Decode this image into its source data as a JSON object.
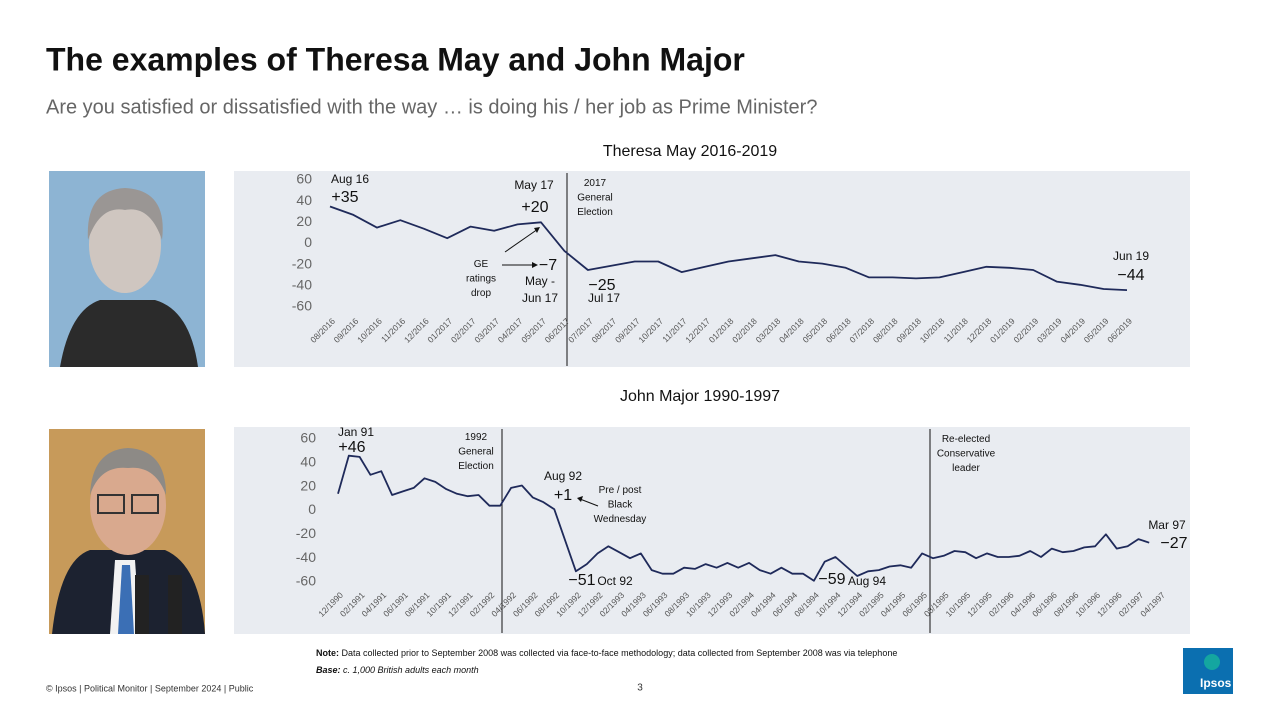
{
  "title": "The examples of Theresa May and John Major",
  "subtitle": "Are you satisfied or dissatisfied with the way … is doing his / her  job as Prime Minister?",
  "note": {
    "label": "Note:",
    "text": "Data collected prior to September 2008 was collected via face-to-face methodology; data collected from September 2008 was via telephone"
  },
  "base": {
    "label": "Base:",
    "text": "c. 1,000 British adults each month"
  },
  "footer": "© Ipsos | Political Monitor | September 2024 | Public",
  "page_number": "3",
  "logo": "Ipsos",
  "chart_data": [
    {
      "type": "line",
      "title": "Theresa May 2016-2019",
      "color": "#1f2a5a",
      "ylim": [
        -60,
        60
      ],
      "yticks": [
        -60,
        -40,
        -20,
        0,
        20,
        40,
        60
      ],
      "categories": [
        "08/2016",
        "09/2016",
        "10/2016",
        "11/2016",
        "12/2016",
        "01/2017",
        "02/2017",
        "03/2017",
        "04/2017",
        "05/2017",
        "06/2017",
        "07/2017",
        "08/2017",
        "09/2017",
        "10/2017",
        "11/2017",
        "12/2017",
        "01/2018",
        "02/2018",
        "03/2018",
        "04/2018",
        "05/2018",
        "06/2018",
        "07/2018",
        "08/2018",
        "09/2018",
        "10/2018",
        "11/2018",
        "12/2018",
        "01/2019",
        "02/2019",
        "03/2019",
        "04/2019",
        "05/2019",
        "06/2019"
      ],
      "values": [
        35,
        27,
        15,
        22,
        14,
        5,
        16,
        12,
        18,
        20,
        -7,
        -25,
        -21,
        -17,
        -17,
        -27,
        -22,
        -17,
        -14,
        -11,
        -17,
        -19,
        -23,
        -32,
        -32,
        -33,
        -32,
        -27,
        -22,
        -23,
        -25,
        -36,
        -39,
        -43,
        -44
      ],
      "value_labels": [
        "+35",
        null,
        null,
        null,
        null,
        null,
        null,
        null,
        null,
        "+20",
        "−7",
        "−25",
        null,
        null,
        null,
        null,
        null,
        null,
        null,
        null,
        null,
        null,
        null,
        null,
        null,
        null,
        null,
        null,
        null,
        null,
        null,
        null,
        null,
        null,
        "−44"
      ],
      "annotations": [
        "Aug 16",
        "May 17",
        [
          "2017",
          "General",
          "Election"
        ],
        [
          "GE",
          "ratings",
          "drop"
        ],
        [
          "May -",
          "Jun 17"
        ],
        "Jul 17",
        "Jun 19"
      ]
    },
    {
      "type": "line",
      "title": "John Major 1990-1997",
      "color": "#1f2a5a",
      "ylim": [
        -60,
        60
      ],
      "yticks": [
        -60,
        -40,
        -20,
        0,
        20,
        40,
        60
      ],
      "categories": [
        "12/1990",
        null,
        "02/1991",
        null,
        "04/1991",
        null,
        "06/1991",
        null,
        "08/1991",
        null,
        "10/1991",
        null,
        "12/1991",
        null,
        "02/1992",
        null,
        "04/1992",
        null,
        "06/1992",
        null,
        "08/1992",
        null,
        "10/1992",
        null,
        "12/1992",
        null,
        "02/1993",
        null,
        "04/1993",
        null,
        "06/1993",
        null,
        "08/1993",
        null,
        "10/1993",
        null,
        "12/1993",
        null,
        "02/1994",
        null,
        "04/1994",
        null,
        "06/1994",
        null,
        "08/1994",
        null,
        "10/1994",
        null,
        "12/1994",
        null,
        "02/1995",
        null,
        "04/1995",
        null,
        "06/1995",
        null,
        "08/1995",
        null,
        "10/1995",
        null,
        "12/1995",
        null,
        "02/1996",
        null,
        "04/1996",
        null,
        "06/1996",
        null,
        "08/1996",
        null,
        "10/1996",
        null,
        "12/1996",
        null,
        "02/1997",
        null,
        "04/1997"
      ],
      "values": [
        14,
        46,
        45,
        30,
        33,
        13,
        16,
        19,
        27,
        24,
        18,
        14,
        12,
        13,
        4,
        4,
        19,
        21,
        11,
        7,
        1,
        -25,
        -51,
        -45,
        -36,
        -30,
        -35,
        -40,
        -36,
        -50,
        -53,
        -53,
        -48,
        -49,
        -45,
        -48,
        -44,
        -48,
        -44,
        -50,
        -53,
        -48,
        -53,
        -53,
        -59,
        -43,
        -39,
        -47,
        -55,
        -51,
        -50,
        -47,
        -46,
        -48,
        -36,
        -40,
        -38,
        -34,
        -35,
        -40,
        -36,
        -39,
        -39,
        -38,
        -34,
        -39,
        -32,
        -35,
        -34,
        -31,
        -30,
        -20,
        -32,
        -30,
        -24,
        -27,
        null
      ],
      "value_labels": [
        null,
        "+46",
        null,
        null,
        null,
        null,
        null,
        null,
        null,
        null,
        null,
        null,
        null,
        null,
        null,
        null,
        null,
        null,
        null,
        null,
        "+1",
        null,
        "−51",
        null,
        null,
        null,
        null,
        null,
        null,
        null,
        null,
        null,
        null,
        null,
        null,
        null,
        null,
        null,
        null,
        null,
        null,
        null,
        null,
        null,
        "−59",
        null,
        null,
        null,
        null,
        null,
        null,
        null,
        null,
        null,
        null,
        null,
        null,
        null,
        null,
        null,
        null,
        null,
        null,
        null,
        null,
        null,
        null,
        null,
        null,
        null,
        null,
        null,
        null,
        null,
        null,
        "−27",
        null
      ],
      "annotations": [
        "Jan 91",
        [
          "1992",
          "General",
          "Election"
        ],
        "Aug 92",
        [
          "Pre / post",
          "Black",
          "Wednesday"
        ],
        "Oct 92",
        "Aug 94",
        [
          "Re-elected",
          "Conservative",
          "leader"
        ],
        "Mar 97"
      ]
    }
  ]
}
